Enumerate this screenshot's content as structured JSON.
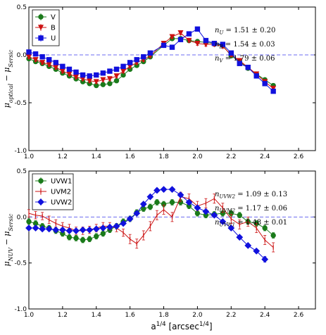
{
  "xlabel": "a^{1/4} [arcsec^{1/4}]",
  "chart_data": [
    {
      "type": "line",
      "ylabel": "μ_{optical} − μ_{Sersic}",
      "xlim": [
        1.0,
        2.7
      ],
      "ylim": [
        -1.0,
        0.5
      ],
      "xticks": [
        "1.0",
        "1.2",
        "1.4",
        "1.6",
        "1.8",
        "2.0",
        "2.2",
        "2.4",
        "2.6"
      ],
      "yticks": [
        "0.5",
        "0.0",
        "-0.5",
        "-1.0"
      ],
      "legend_position": "top-left",
      "reference_line": 0.0,
      "annotations": [
        {
          "var": "n",
          "sub": "U",
          "value": "1.51 ± 0.20"
        },
        {
          "var": "n",
          "sub": "B",
          "value": "1.54 ± 0.03"
        },
        {
          "var": "n",
          "sub": "V",
          "value": "1.79 ± 0.06"
        }
      ],
      "series": [
        {
          "name": "V",
          "color": "#1a7a1a",
          "marker": "circle",
          "x": [
            1.0,
            1.04,
            1.08,
            1.12,
            1.16,
            1.2,
            1.24,
            1.28,
            1.32,
            1.36,
            1.4,
            1.44,
            1.48,
            1.52,
            1.56,
            1.6,
            1.64,
            1.68,
            1.72,
            1.8,
            1.85,
            1.9,
            1.95,
            2.0,
            2.05,
            2.1,
            2.15,
            2.2,
            2.25,
            2.3,
            2.35,
            2.4,
            2.45
          ],
          "y": [
            -0.04,
            -0.07,
            -0.09,
            -0.12,
            -0.15,
            -0.19,
            -0.22,
            -0.25,
            -0.28,
            -0.3,
            -0.32,
            -0.31,
            -0.3,
            -0.27,
            -0.21,
            -0.15,
            -0.11,
            -0.07,
            -0.02,
            0.1,
            0.17,
            0.17,
            0.15,
            0.14,
            0.13,
            0.12,
            0.1,
            -0.01,
            -0.07,
            -0.14,
            -0.2,
            -0.26,
            -0.32
          ],
          "err": [
            0.02,
            0.02,
            0.02,
            0.02,
            0.02,
            0.02,
            0.02,
            0.02,
            0.02,
            0.02,
            0.02,
            0.02,
            0.02,
            0.02,
            0.02,
            0.02,
            0.02,
            0.02,
            0.02,
            0.02,
            0.02,
            0.02,
            0.02,
            0.02,
            0.02,
            0.02,
            0.02,
            0.02,
            0.02,
            0.02,
            0.02,
            0.02,
            0.02
          ]
        },
        {
          "name": "B",
          "color": "#cc1111",
          "marker": "triangle-down",
          "x": [
            1.0,
            1.04,
            1.08,
            1.12,
            1.16,
            1.2,
            1.24,
            1.28,
            1.32,
            1.36,
            1.4,
            1.44,
            1.48,
            1.52,
            1.56,
            1.6,
            1.64,
            1.68,
            1.72,
            1.8,
            1.85,
            1.9,
            1.95,
            2.0,
            2.05,
            2.1,
            2.15,
            2.2,
            2.25,
            2.3,
            2.35,
            2.4,
            2.45
          ],
          "y": [
            -0.02,
            -0.05,
            -0.08,
            -0.1,
            -0.13,
            -0.17,
            -0.2,
            -0.23,
            -0.25,
            -0.27,
            -0.28,
            -0.26,
            -0.25,
            -0.22,
            -0.17,
            -0.12,
            -0.08,
            -0.05,
            -0.01,
            0.12,
            0.19,
            0.23,
            0.15,
            0.12,
            0.11,
            0.11,
            0.09,
            0.0,
            -0.06,
            -0.13,
            -0.2,
            -0.28,
            -0.35
          ],
          "err": [
            0.02,
            0.02,
            0.02,
            0.02,
            0.02,
            0.02,
            0.02,
            0.02,
            0.02,
            0.02,
            0.02,
            0.02,
            0.02,
            0.02,
            0.02,
            0.02,
            0.02,
            0.02,
            0.02,
            0.02,
            0.02,
            0.02,
            0.02,
            0.02,
            0.02,
            0.02,
            0.02,
            0.02,
            0.02,
            0.02,
            0.02,
            0.02,
            0.02
          ]
        },
        {
          "name": "U",
          "color": "#1111dd",
          "marker": "square",
          "x": [
            1.0,
            1.04,
            1.08,
            1.12,
            1.16,
            1.2,
            1.24,
            1.28,
            1.32,
            1.36,
            1.4,
            1.44,
            1.48,
            1.52,
            1.56,
            1.6,
            1.64,
            1.68,
            1.72,
            1.8,
            1.85,
            1.9,
            1.95,
            2.0,
            2.05,
            2.1,
            2.15,
            2.2,
            2.25,
            2.3,
            2.35,
            2.4,
            2.45
          ],
          "y": [
            0.03,
            0.01,
            -0.02,
            -0.05,
            -0.08,
            -0.12,
            -0.15,
            -0.18,
            -0.21,
            -0.22,
            -0.21,
            -0.19,
            -0.17,
            -0.15,
            -0.12,
            -0.08,
            -0.05,
            -0.02,
            0.02,
            0.1,
            0.08,
            0.16,
            0.22,
            0.27,
            0.15,
            0.12,
            0.11,
            0.02,
            -0.09,
            -0.13,
            -0.22,
            -0.3,
            -0.38
          ],
          "err": [
            0.02,
            0.02,
            0.02,
            0.02,
            0.02,
            0.02,
            0.02,
            0.02,
            0.02,
            0.02,
            0.02,
            0.02,
            0.02,
            0.02,
            0.02,
            0.02,
            0.02,
            0.02,
            0.02,
            0.02,
            0.02,
            0.02,
            0.02,
            0.02,
            0.02,
            0.02,
            0.02,
            0.02,
            0.02,
            0.02,
            0.02,
            0.02,
            0.02
          ]
        }
      ]
    },
    {
      "type": "line",
      "ylabel": "μ_{NUV} − μ_{Sersic}",
      "xlim": [
        1.0,
        2.7
      ],
      "ylim": [
        -1.0,
        0.5
      ],
      "xticks": [
        "1.0",
        "1.2",
        "1.4",
        "1.6",
        "1.8",
        "2.0",
        "2.2",
        "2.4",
        "2.6"
      ],
      "yticks": [
        "0.5",
        "0.0",
        "-0.5",
        "-1.0"
      ],
      "legend_position": "top-left",
      "reference_line": 0.0,
      "annotations": [
        {
          "var": "n",
          "sub": "UVW2",
          "value": "1.09 ± 0.13"
        },
        {
          "var": "n",
          "sub": "UVM2",
          "value": "1.17 ± 0.06"
        },
        {
          "var": "n",
          "sub": "UVW1",
          "value": "1.48 ± 0.01"
        }
      ],
      "series": [
        {
          "name": "UVW1",
          "color": "#1a7a1a",
          "marker": "circle",
          "x": [
            1.0,
            1.04,
            1.08,
            1.12,
            1.16,
            1.2,
            1.24,
            1.28,
            1.32,
            1.36,
            1.4,
            1.44,
            1.48,
            1.52,
            1.56,
            1.6,
            1.64,
            1.68,
            1.72,
            1.76,
            1.8,
            1.85,
            1.9,
            1.95,
            2.0,
            2.05,
            2.1,
            2.15,
            2.2,
            2.25,
            2.3,
            2.35,
            2.4,
            2.45
          ],
          "y": [
            -0.05,
            -0.07,
            -0.1,
            -0.12,
            -0.15,
            -0.18,
            -0.22,
            -0.23,
            -0.25,
            -0.24,
            -0.21,
            -0.18,
            -0.14,
            -0.1,
            -0.05,
            -0.02,
            0.05,
            0.09,
            0.11,
            0.16,
            0.14,
            0.16,
            0.16,
            0.12,
            0.04,
            0.02,
            0.03,
            0.04,
            0.04,
            0.02,
            -0.05,
            -0.07,
            -0.12,
            -0.2
          ],
          "err": [
            0.03,
            0.03,
            0.03,
            0.03,
            0.03,
            0.03,
            0.03,
            0.03,
            0.03,
            0.03,
            0.03,
            0.03,
            0.03,
            0.03,
            0.03,
            0.03,
            0.03,
            0.03,
            0.03,
            0.03,
            0.03,
            0.03,
            0.03,
            0.03,
            0.03,
            0.03,
            0.03,
            0.03,
            0.03,
            0.03,
            0.03,
            0.03,
            0.03,
            0.03
          ]
        },
        {
          "name": "UVM2",
          "color": "#cc1111",
          "marker": "vline",
          "x": [
            1.0,
            1.04,
            1.08,
            1.12,
            1.16,
            1.2,
            1.24,
            1.28,
            1.32,
            1.36,
            1.4,
            1.44,
            1.48,
            1.52,
            1.56,
            1.6,
            1.64,
            1.68,
            1.72,
            1.76,
            1.8,
            1.85,
            1.9,
            1.95,
            2.0,
            2.05,
            2.1,
            2.15,
            2.2,
            2.25,
            2.3,
            2.35,
            2.4,
            2.45
          ],
          "y": [
            0.04,
            0.02,
            0.01,
            -0.03,
            -0.07,
            -0.1,
            -0.12,
            -0.15,
            -0.15,
            -0.14,
            -0.12,
            -0.1,
            -0.1,
            -0.12,
            -0.17,
            -0.24,
            -0.29,
            -0.2,
            -0.1,
            0.02,
            0.08,
            0.0,
            0.22,
            0.2,
            0.12,
            0.15,
            0.2,
            0.1,
            -0.02,
            -0.08,
            -0.05,
            -0.12,
            -0.25,
            -0.33
          ],
          "err": [
            0.04,
            0.04,
            0.04,
            0.04,
            0.04,
            0.04,
            0.04,
            0.04,
            0.04,
            0.04,
            0.04,
            0.04,
            0.04,
            0.04,
            0.04,
            0.05,
            0.05,
            0.05,
            0.05,
            0.05,
            0.05,
            0.05,
            0.05,
            0.05,
            0.05,
            0.05,
            0.05,
            0.05,
            0.05,
            0.05,
            0.05,
            0.05,
            0.05,
            0.05
          ]
        },
        {
          "name": "UVW2",
          "color": "#1111dd",
          "marker": "diamond",
          "x": [
            1.0,
            1.04,
            1.08,
            1.12,
            1.16,
            1.2,
            1.24,
            1.28,
            1.32,
            1.36,
            1.4,
            1.44,
            1.48,
            1.52,
            1.56,
            1.6,
            1.64,
            1.68,
            1.72,
            1.76,
            1.8,
            1.85,
            1.9,
            1.95,
            2.0,
            2.05,
            2.1,
            2.15,
            2.2,
            2.25,
            2.3,
            2.35,
            2.4
          ],
          "y": [
            -0.12,
            -0.12,
            -0.13,
            -0.13,
            -0.14,
            -0.14,
            -0.15,
            -0.15,
            -0.14,
            -0.14,
            -0.13,
            -0.12,
            -0.11,
            -0.1,
            -0.07,
            -0.02,
            0.04,
            0.14,
            0.22,
            0.29,
            0.3,
            0.3,
            0.24,
            0.16,
            0.1,
            0.06,
            0.02,
            -0.05,
            -0.12,
            -0.22,
            -0.31,
            -0.37,
            -0.46
          ],
          "err": [
            0.02,
            0.02,
            0.02,
            0.02,
            0.02,
            0.02,
            0.02,
            0.02,
            0.02,
            0.02,
            0.02,
            0.02,
            0.02,
            0.02,
            0.02,
            0.02,
            0.02,
            0.02,
            0.02,
            0.02,
            0.02,
            0.02,
            0.02,
            0.02,
            0.02,
            0.02,
            0.02,
            0.02,
            0.02,
            0.02,
            0.02,
            0.02,
            0.03
          ]
        }
      ]
    }
  ]
}
